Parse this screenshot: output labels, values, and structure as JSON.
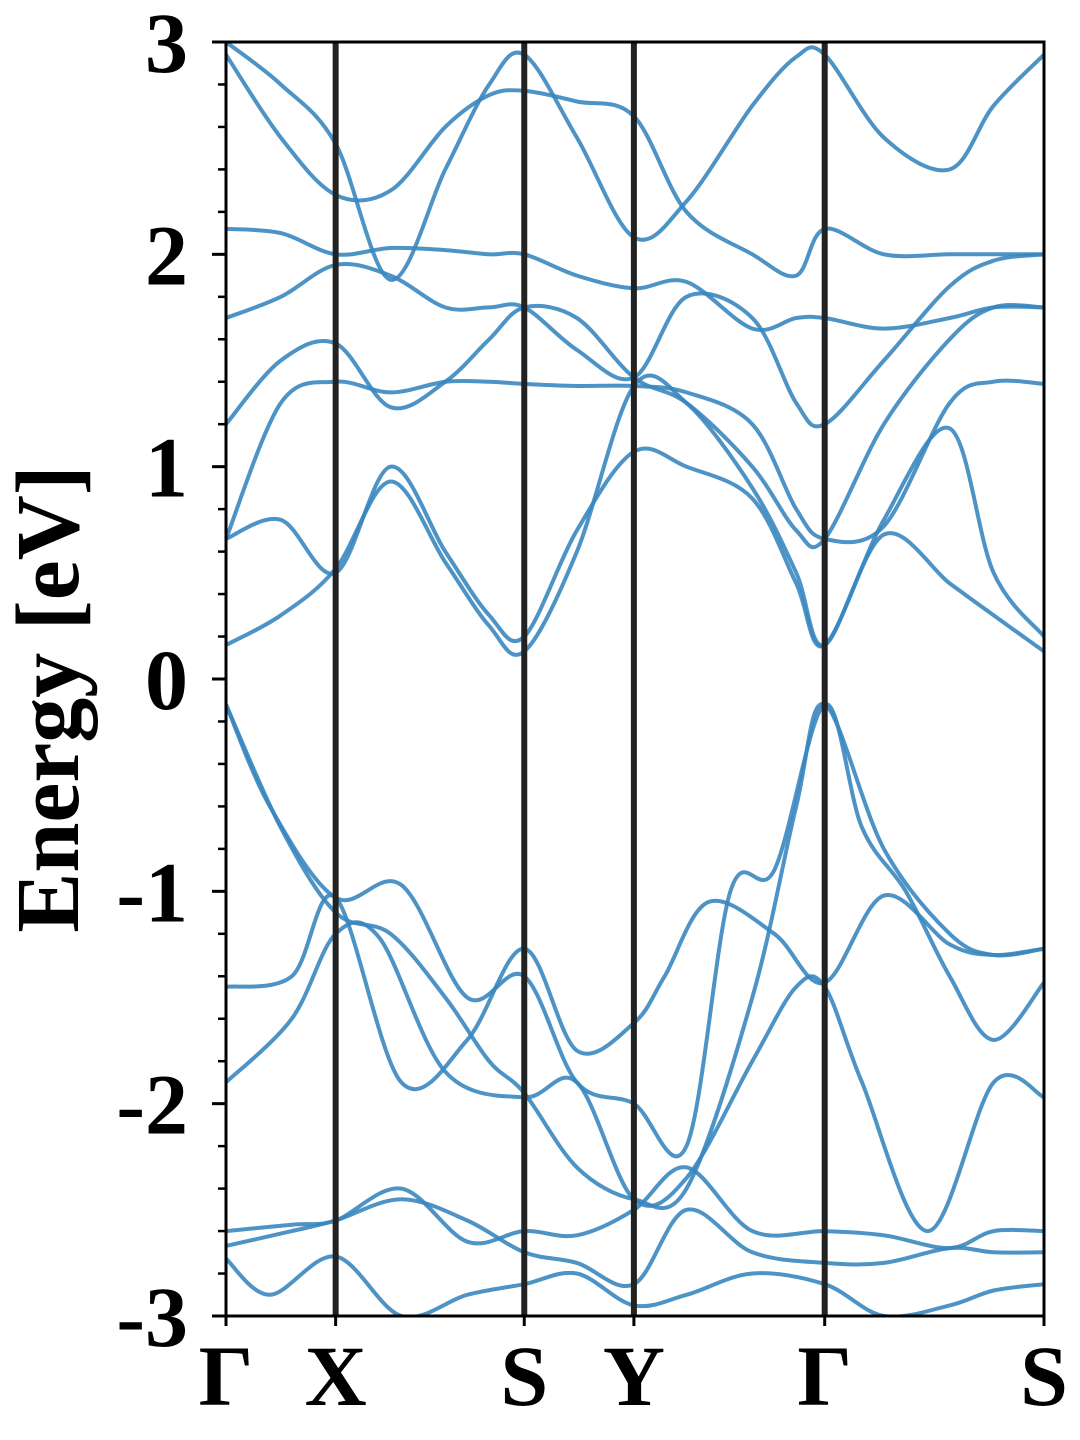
{
  "chart_data": {
    "type": "line",
    "title": "",
    "xlabel": "",
    "ylabel": "Energy [eV]",
    "ylim": [
      -3,
      3
    ],
    "xlim": [
      0,
      3.73
    ],
    "y_ticks": [
      -3,
      -2,
      -1,
      0,
      1,
      2,
      3
    ],
    "y_tick_labels": [
      "-3",
      "-2",
      "-1",
      "0",
      "1",
      "2",
      "3"
    ],
    "high_symmetry_points": [
      {
        "label": "Γ",
        "k": 0.0
      },
      {
        "label": "X",
        "k": 0.5
      },
      {
        "label": "S",
        "k": 1.36
      },
      {
        "label": "Y",
        "k": 1.86
      },
      {
        "label": "Γ",
        "k": 2.73
      },
      {
        "label": "S",
        "k": 3.73
      }
    ],
    "line_color": "#3a87c0",
    "vertical_line_color": "#222222",
    "grid": false,
    "legend": "none",
    "series": [
      {
        "x": [
          0.0,
          0.25,
          0.5,
          0.75,
          1.0,
          1.2,
          1.36,
          1.6,
          1.86,
          2.1,
          2.4,
          2.6,
          2.73,
          3.0,
          3.3,
          3.5,
          3.73
        ],
        "y": [
          -0.12,
          -0.7,
          -1.1,
          -1.2,
          -1.5,
          -1.8,
          -1.95,
          -2.3,
          -2.45,
          -2.4,
          -1.5,
          -0.6,
          -0.12,
          -0.8,
          -1.2,
          -1.3,
          -1.27
        ]
      },
      {
        "x": [
          0.0,
          0.2,
          0.5,
          0.8,
          1.1,
          1.36,
          1.6,
          1.86,
          2.1,
          2.3,
          2.5,
          2.73,
          2.9,
          3.1,
          3.3,
          3.5,
          3.73
        ],
        "y": [
          -0.12,
          -0.6,
          -1.03,
          -0.97,
          -1.5,
          -1.4,
          -1.9,
          -2.0,
          -2.2,
          -1.0,
          -0.9,
          -0.12,
          -0.7,
          -1.0,
          -1.4,
          -1.7,
          -1.43
        ]
      },
      {
        "x": [
          0.0,
          0.3,
          0.5,
          0.8,
          1.1,
          1.36,
          1.6,
          1.86,
          2.0,
          2.2,
          2.5,
          2.73,
          3.0,
          3.3,
          3.5,
          3.73
        ],
        "y": [
          -1.45,
          -1.4,
          -1.03,
          -1.9,
          -1.7,
          -1.27,
          -1.75,
          -1.62,
          -1.4,
          -1.05,
          -1.2,
          -1.43,
          -1.02,
          -1.25,
          -1.3,
          -1.27
        ]
      },
      {
        "x": [
          0.0,
          0.3,
          0.5,
          0.7,
          1.0,
          1.36,
          1.6,
          1.86,
          2.1,
          2.4,
          2.6,
          2.73,
          2.9,
          3.2,
          3.5,
          3.73
        ],
        "y": [
          -1.9,
          -1.6,
          -1.2,
          -1.22,
          -1.85,
          -1.97,
          -1.9,
          -2.45,
          -2.35,
          -1.8,
          -1.45,
          -1.45,
          -1.9,
          -2.6,
          -1.9,
          -1.97
        ]
      },
      {
        "x": [
          0.0,
          0.3,
          0.5,
          0.8,
          1.1,
          1.36,
          1.6,
          1.86,
          2.1,
          2.4,
          2.73,
          3.0,
          3.3,
          3.5,
          3.73
        ],
        "y": [
          -2.6,
          -2.57,
          -2.55,
          -2.4,
          -2.65,
          -2.6,
          -2.62,
          -2.5,
          -2.3,
          -2.6,
          -2.6,
          -2.62,
          -2.68,
          -2.6,
          -2.6
        ]
      },
      {
        "x": [
          0.0,
          0.3,
          0.5,
          0.8,
          1.1,
          1.36,
          1.6,
          1.86,
          2.1,
          2.4,
          2.73,
          3.0,
          3.3,
          3.5,
          3.73
        ],
        "y": [
          -2.67,
          -2.6,
          -2.55,
          -2.45,
          -2.55,
          -2.7,
          -2.75,
          -2.85,
          -2.5,
          -2.7,
          -2.75,
          -2.75,
          -2.68,
          -2.7,
          -2.7
        ]
      },
      {
        "x": [
          0.0,
          0.2,
          0.5,
          0.8,
          1.1,
          1.36,
          1.6,
          1.86,
          2.1,
          2.4,
          2.73,
          3.0,
          3.3,
          3.5,
          3.73
        ],
        "y": [
          -2.73,
          -2.9,
          -2.72,
          -3.0,
          -2.9,
          -2.85,
          -2.8,
          -2.95,
          -2.9,
          -2.8,
          -2.85,
          -3.0,
          -2.95,
          -2.88,
          -2.85
        ]
      },
      {
        "x": [
          0.0,
          0.25,
          0.5,
          0.75,
          1.0,
          1.2,
          1.36,
          1.6,
          1.86,
          2.1,
          2.4,
          2.6,
          2.73,
          3.0,
          3.3,
          3.5,
          3.73
        ],
        "y": [
          0.16,
          0.3,
          0.52,
          0.93,
          0.55,
          0.25,
          0.13,
          0.6,
          1.38,
          1.3,
          0.9,
          0.5,
          0.16,
          0.68,
          0.45,
          0.3,
          0.13
        ]
      },
      {
        "x": [
          0.0,
          0.25,
          0.5,
          0.75,
          1.0,
          1.2,
          1.36,
          1.6,
          1.86,
          2.1,
          2.4,
          2.6,
          2.73,
          3.0,
          3.3,
          3.5,
          3.73
        ],
        "y": [
          0.66,
          0.75,
          0.5,
          1.0,
          0.6,
          0.3,
          0.2,
          0.7,
          1.07,
          1.0,
          0.85,
          0.45,
          0.16,
          0.75,
          1.18,
          0.5,
          0.2
        ]
      },
      {
        "x": [
          0.0,
          0.25,
          0.5,
          0.75,
          1.0,
          1.2,
          1.36,
          1.6,
          1.86,
          2.1,
          2.4,
          2.6,
          2.73,
          3.0,
          3.3,
          3.5,
          3.73
        ],
        "y": [
          0.66,
          1.3,
          1.4,
          1.35,
          1.4,
          1.4,
          1.39,
          1.38,
          1.38,
          1.35,
          1.2,
          0.8,
          0.66,
          0.72,
          1.3,
          1.4,
          1.39
        ]
      },
      {
        "x": [
          0.0,
          0.25,
          0.5,
          0.75,
          1.0,
          1.2,
          1.36,
          1.6,
          1.86,
          2.1,
          2.4,
          2.6,
          2.73,
          3.0,
          3.3,
          3.5,
          3.73
        ],
        "y": [
          1.2,
          1.5,
          1.58,
          1.28,
          1.4,
          1.6,
          1.75,
          1.7,
          1.42,
          1.3,
          1.0,
          0.7,
          0.66,
          1.2,
          1.6,
          1.75,
          1.75
        ]
      },
      {
        "x": [
          0.0,
          0.25,
          0.5,
          0.75,
          1.0,
          1.2,
          1.36,
          1.6,
          1.86,
          2.1,
          2.4,
          2.6,
          2.73,
          3.0,
          3.3,
          3.5,
          3.73
        ],
        "y": [
          1.7,
          1.8,
          1.95,
          1.9,
          1.75,
          1.75,
          1.75,
          1.55,
          1.42,
          1.8,
          1.7,
          1.3,
          1.2,
          1.5,
          1.85,
          1.97,
          2.0
        ]
      },
      {
        "x": [
          0.0,
          0.25,
          0.5,
          0.75,
          1.0,
          1.2,
          1.36,
          1.6,
          1.86,
          2.1,
          2.4,
          2.6,
          2.73,
          3.0,
          3.3,
          3.5,
          3.73
        ],
        "y": [
          2.12,
          2.1,
          2.0,
          2.03,
          2.02,
          2.0,
          2.0,
          1.9,
          1.84,
          1.87,
          1.65,
          1.7,
          1.7,
          1.65,
          1.7,
          1.75,
          1.75
        ]
      },
      {
        "x": [
          0.0,
          0.25,
          0.5,
          0.75,
          1.0,
          1.2,
          1.36,
          1.6,
          1.86,
          2.1,
          2.4,
          2.6,
          2.73,
          3.0,
          3.3,
          3.5,
          3.73
        ],
        "y": [
          2.94,
          2.55,
          2.28,
          2.3,
          2.6,
          2.75,
          2.77,
          2.72,
          2.65,
          2.2,
          2.0,
          1.9,
          2.12,
          2.0,
          2.0,
          2.0,
          2.0
        ]
      },
      {
        "x": [
          0.0,
          0.25,
          0.5,
          0.75,
          1.0,
          1.2,
          1.36,
          1.6,
          1.86,
          2.1,
          2.4,
          2.6,
          2.73,
          3.0,
          3.3,
          3.5,
          3.73
        ],
        "y": [
          3.0,
          2.8,
          2.52,
          1.88,
          2.4,
          2.8,
          2.94,
          2.55,
          2.08,
          2.25,
          2.7,
          2.93,
          2.94,
          2.55,
          2.4,
          2.7,
          2.94
        ]
      }
    ]
  }
}
